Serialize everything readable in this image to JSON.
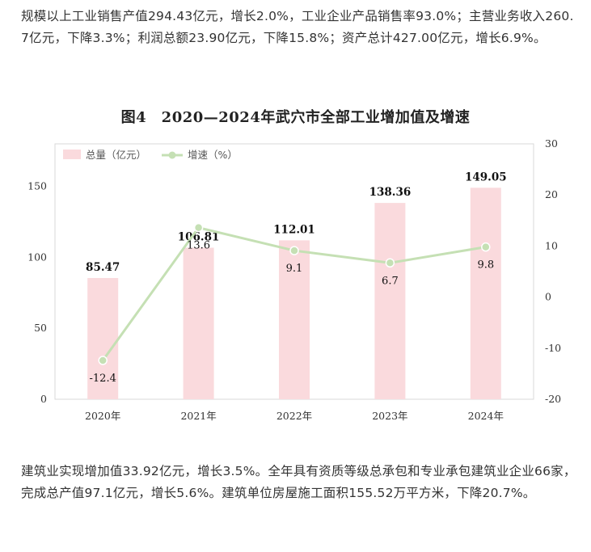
{
  "paragraphs": {
    "top": "规模以上工业销售产值294.43亿元，增长2.0%，工业企业产品销售率93.0%；主营业务收入260.7亿元，下降3.3%；利润总额23.90亿元，下降15.8%；资产总计427.00亿元，增长6.9%。",
    "bottom": "建筑业实现增加值33.92亿元，增长3.5%。全年具有资质等级总承包和专业承包建筑业企业66家，完成总产值97.1亿元，增长5.6%。建筑单位房屋施工面积155.52万平方米，下降20.7%。"
  },
  "chart_data": {
    "type": "bar",
    "title": "图4　2020—2024年武穴市全部工业增加值及增速",
    "categories": [
      "2020年",
      "2021年",
      "2022年",
      "2023年",
      "2024年"
    ],
    "series": [
      {
        "name": "总量（亿元）",
        "type": "bar",
        "axis": "left",
        "values": [
          85.47,
          106.81,
          112.01,
          138.36,
          149.05
        ],
        "color": "#fadadd"
      },
      {
        "name": "增速（%）",
        "type": "line",
        "axis": "right",
        "values": [
          -12.4,
          13.6,
          9.1,
          6.7,
          9.8
        ],
        "color": "#c5e0b4"
      }
    ],
    "y_left": {
      "range": [
        0,
        180
      ],
      "ticks": [
        "0",
        "50",
        "100",
        "150"
      ]
    },
    "y_right": {
      "range": [
        -20,
        30
      ],
      "ticks": [
        "-20",
        "-10",
        "0",
        "10",
        "20",
        "30"
      ]
    },
    "legend": "top-left",
    "grid": false
  }
}
